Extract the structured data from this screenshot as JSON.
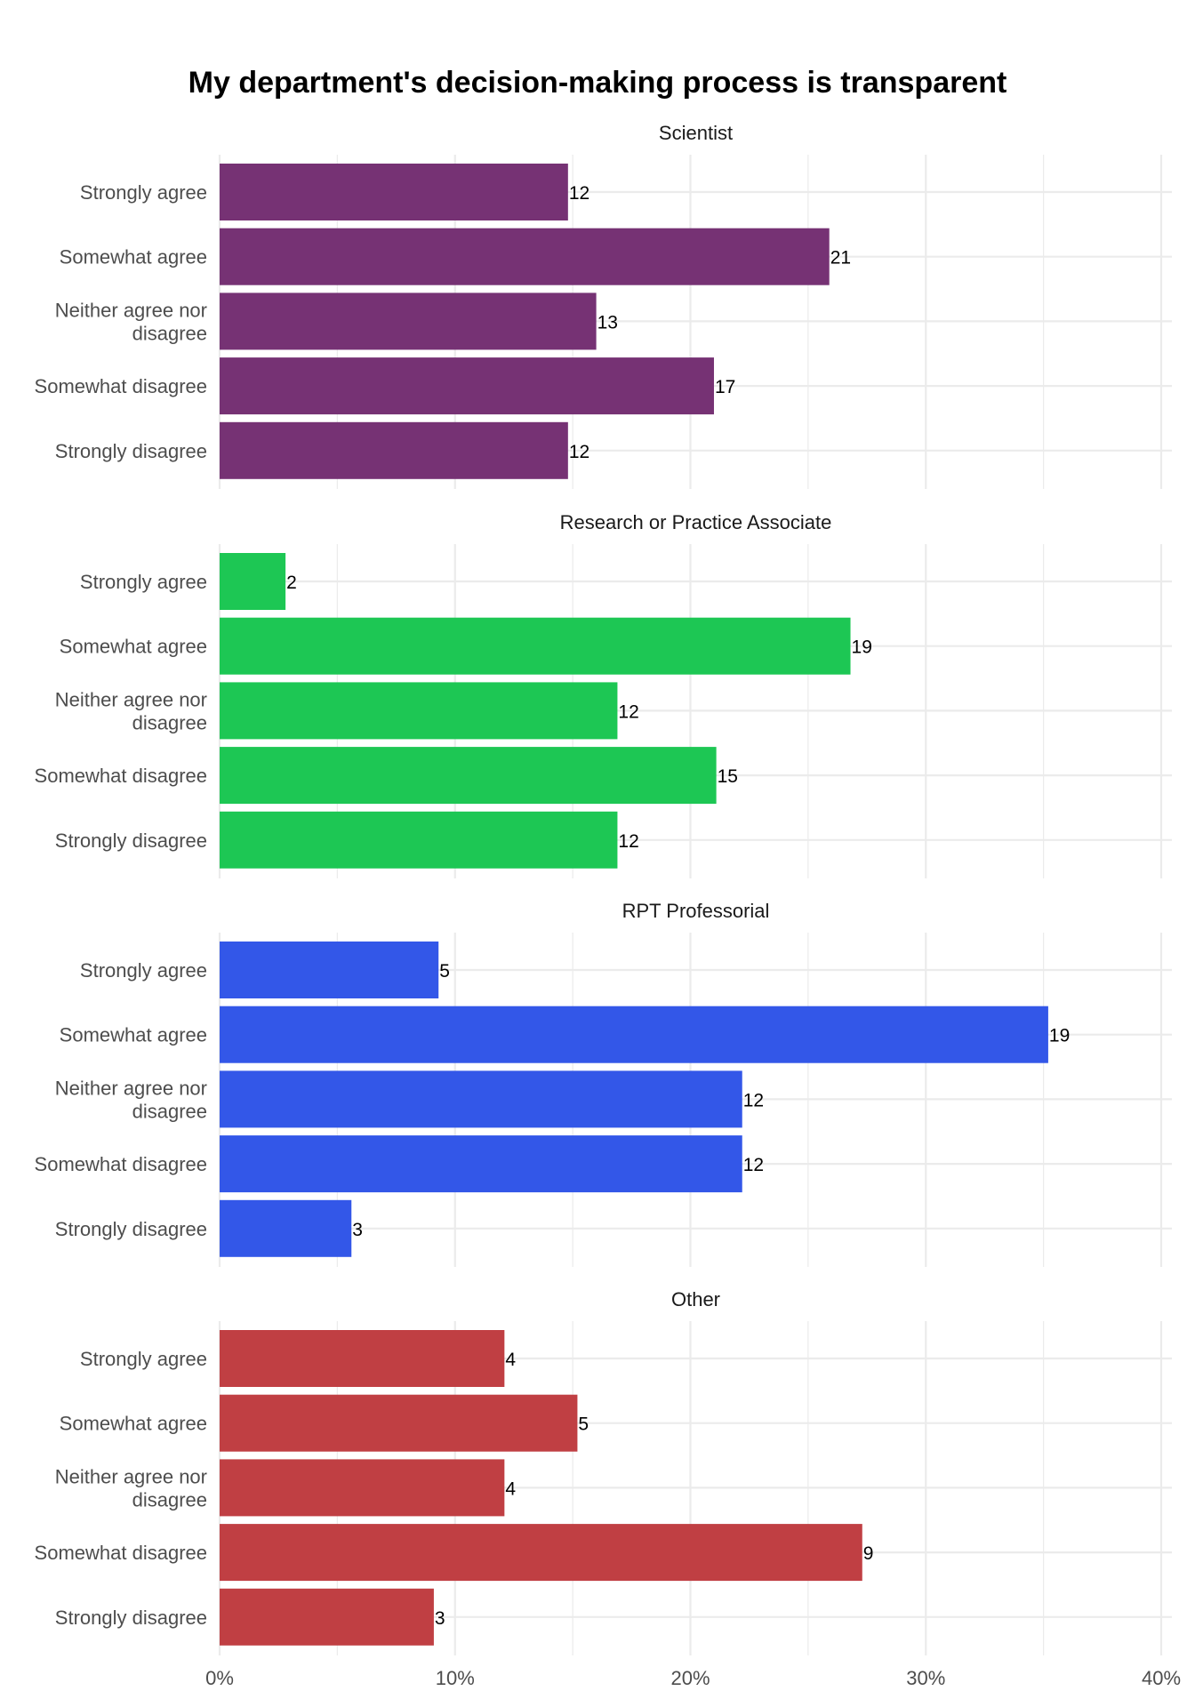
{
  "chart_data": {
    "type": "bar",
    "orientation": "horizontal",
    "title": "My department's decision-making process is transparent",
    "xlabel": "",
    "ylabel": "",
    "xlim": [
      0,
      40
    ],
    "x_ticks": [
      "0%",
      "10%",
      "20%",
      "30%",
      "40%"
    ],
    "grid": true,
    "categories": [
      "Strongly agree",
      "Somewhat agree",
      "Neither agree nor disagree",
      "Somewhat disagree",
      "Strongly disagree"
    ],
    "category_lines": [
      [
        "Strongly agree"
      ],
      [
        "Somewhat agree"
      ],
      [
        "Neither agree nor",
        "disagree"
      ],
      [
        "Somewhat disagree"
      ],
      [
        "Strongly disagree"
      ]
    ],
    "panels": [
      {
        "name": "Scientist",
        "color": "#763274",
        "percent": [
          14.8,
          25.9,
          16.0,
          21.0,
          14.8
        ],
        "counts": [
          "12",
          "21",
          "13",
          "17",
          "12"
        ]
      },
      {
        "name": "Research or Practice Associate",
        "color": "#1dc754",
        "percent": [
          2.8,
          26.8,
          16.9,
          21.1,
          16.9
        ],
        "counts": [
          "2",
          "19",
          "12",
          "15",
          "12"
        ]
      },
      {
        "name": "RPT Professorial",
        "color": "#3357e8",
        "percent": [
          9.3,
          35.2,
          22.2,
          22.2,
          5.6
        ],
        "counts": [
          "5",
          "19",
          "12",
          "12",
          "3"
        ]
      },
      {
        "name": "Other",
        "color": "#c03f43",
        "percent": [
          12.1,
          15.2,
          12.1,
          27.3,
          9.1
        ],
        "counts": [
          "4",
          "5",
          "4",
          "9",
          "3"
        ]
      }
    ]
  }
}
